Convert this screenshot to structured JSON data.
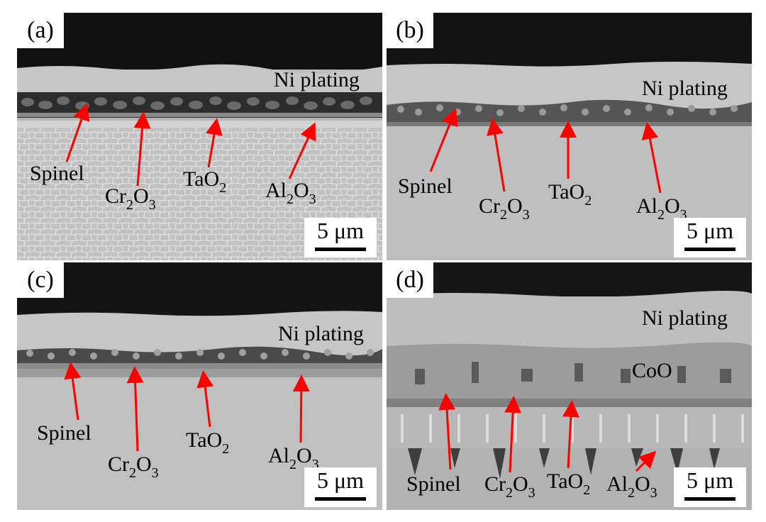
{
  "panels": [
    {
      "tag": "(a)",
      "ni_plating": "Ni plating",
      "spinel": "Spinel",
      "cr2o3": {
        "a": "Cr",
        "b": "2",
        "c": "O",
        "d": "3"
      },
      "tao2": {
        "a": "TaO",
        "b": "2"
      },
      "al2o3": {
        "a": "Al",
        "b": "2",
        "c": "O",
        "d": "3"
      },
      "scale_bar": "5 μm"
    },
    {
      "tag": "(b)",
      "ni_plating": "Ni plating",
      "spinel": "Spinel",
      "cr2o3": {
        "a": "Cr",
        "b": "2",
        "c": "O",
        "d": "3"
      },
      "tao2": {
        "a": "TaO",
        "b": "2"
      },
      "al2o3": {
        "a": "Al",
        "b": "2",
        "c": "O",
        "d": "3"
      },
      "scale_bar": "5 μm"
    },
    {
      "tag": "(c)",
      "ni_plating": "Ni plating",
      "spinel": "Spinel",
      "cr2o3": {
        "a": "Cr",
        "b": "2",
        "c": "O",
        "d": "3"
      },
      "tao2": {
        "a": "TaO",
        "b": "2"
      },
      "al2o3": {
        "a": "Al",
        "b": "2",
        "c": "O",
        "d": "3"
      },
      "scale_bar": "5 μm"
    },
    {
      "tag": "(d)",
      "ni_plating": "Ni plating",
      "coo": "CoO",
      "spinel": "Spinel",
      "cr2o3": {
        "a": "Cr",
        "b": "2",
        "c": "O",
        "d": "3"
      },
      "tao2": {
        "a": "TaO",
        "b": "2"
      },
      "al2o3": {
        "a": "Al",
        "b": "2",
        "c": "O",
        "d": "3"
      },
      "scale_bar": "5 μm"
    }
  ],
  "colors": {
    "arrow": "#ff0000",
    "epoxy": "#121212",
    "ni_plating": "#c4c4c4",
    "substrate": "#bfbfbf",
    "oxide_dark": "#3a3a3a"
  }
}
